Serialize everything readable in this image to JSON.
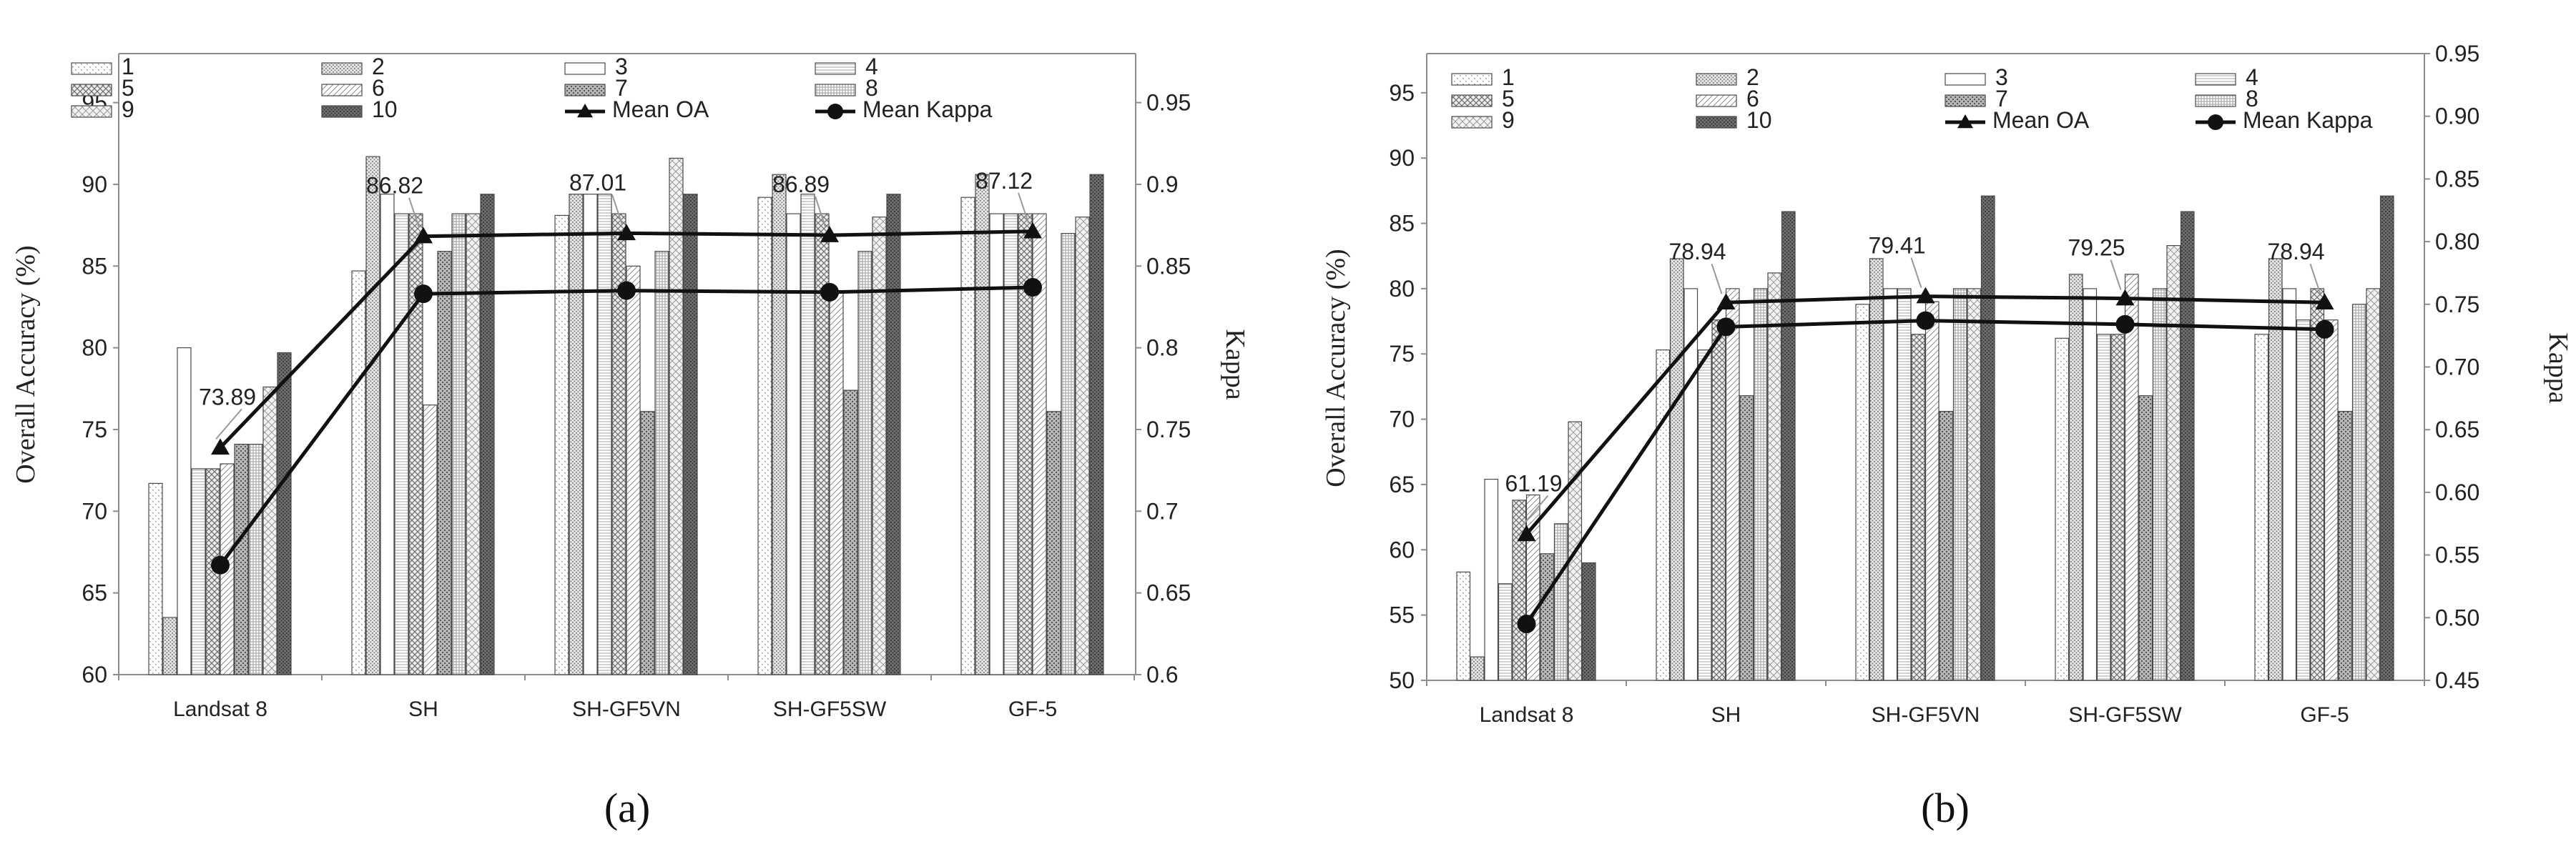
{
  "colors": {
    "axis": "#8c8c8c",
    "bar_stroke": "#4a4a4a",
    "line": "#111111",
    "text": "#222222",
    "callout": "#999999"
  },
  "chart_data": [
    {
      "type": "bar",
      "panel_label": "(a)",
      "categories": [
        "Landsat 8",
        "SH",
        "SH-GF5VN",
        "SH-GF5SW",
        "GF-5"
      ],
      "ylabel": "Overall Accuracy (%)",
      "ylabel_right": "Kappa",
      "ylim": [
        60,
        98
      ],
      "yticks": [
        "60",
        "65",
        "70",
        "75",
        "80",
        "85",
        "90",
        "95"
      ],
      "y2lim": [
        0.6,
        0.98
      ],
      "y2ticks": [
        "0.6",
        "0.65",
        "0.7",
        "0.75",
        "0.8",
        "0.85",
        "0.9",
        "0.95"
      ],
      "legend_position": "top",
      "series": [
        {
          "name": "1",
          "values": [
            71.7,
            84.7,
            88.1,
            89.2,
            89.2
          ]
        },
        {
          "name": "2",
          "values": [
            63.5,
            91.7,
            89.4,
            90.6,
            90.6
          ]
        },
        {
          "name": "3",
          "values": [
            80.0,
            89.4,
            89.4,
            88.2,
            88.2
          ]
        },
        {
          "name": "4",
          "values": [
            72.6,
            88.2,
            89.4,
            89.4,
            88.2
          ]
        },
        {
          "name": "5",
          "values": [
            72.6,
            88.2,
            88.2,
            88.2,
            88.2
          ]
        },
        {
          "name": "6",
          "values": [
            72.9,
            76.5,
            85.0,
            83.5,
            88.2
          ]
        },
        {
          "name": "7",
          "values": [
            74.1,
            85.9,
            76.1,
            77.4,
            76.1
          ]
        },
        {
          "name": "8",
          "values": [
            74.1,
            88.2,
            85.9,
            85.9,
            87.0
          ]
        },
        {
          "name": "9",
          "values": [
            77.6,
            88.2,
            91.6,
            88.0,
            88.0
          ]
        },
        {
          "name": "10",
          "values": [
            79.7,
            89.4,
            89.4,
            89.4,
            90.6
          ]
        }
      ],
      "mean_oa": {
        "name": "Mean OA",
        "values": [
          73.89,
          86.82,
          87.01,
          86.89,
          87.12
        ]
      },
      "mean_kappa": {
        "name": "Mean Kappa",
        "values": [
          0.667,
          0.833,
          0.835,
          0.834,
          0.837
        ]
      },
      "annotations": [
        "73.89",
        "86.82",
        "87.01",
        "86.89",
        "87.12"
      ]
    },
    {
      "type": "bar",
      "panel_label": "(b)",
      "categories": [
        "Landsat 8",
        "SH",
        "SH-GF5VN",
        "SH-GF5SW",
        "GF-5"
      ],
      "ylabel": "Overall Accuracy (%)",
      "ylabel_right": "Kappa",
      "ylim": [
        50,
        98
      ],
      "yticks": [
        "50",
        "55",
        "60",
        "65",
        "70",
        "75",
        "80",
        "85",
        "90",
        "95"
      ],
      "y2lim": [
        0.45,
        0.95
      ],
      "y2ticks": [
        "0.45",
        "0.50",
        "0.55",
        "0.60",
        "0.65",
        "0.70",
        "0.75",
        "0.80",
        "0.85",
        "0.90",
        "0.95"
      ],
      "legend_position": "top",
      "series": [
        {
          "name": "1",
          "values": [
            58.3,
            75.3,
            78.8,
            76.2,
            76.5
          ]
        },
        {
          "name": "2",
          "values": [
            51.8,
            82.3,
            82.3,
            81.1,
            82.3
          ]
        },
        {
          "name": "3",
          "values": [
            65.4,
            80.0,
            80.0,
            80.0,
            80.0
          ]
        },
        {
          "name": "4",
          "values": [
            57.4,
            75.3,
            80.0,
            76.5,
            77.6
          ]
        },
        {
          "name": "5",
          "values": [
            63.8,
            77.6,
            76.5,
            76.5,
            80.0
          ]
        },
        {
          "name": "6",
          "values": [
            64.2,
            80.0,
            79.0,
            81.1,
            77.6
          ]
        },
        {
          "name": "7",
          "values": [
            59.7,
            71.8,
            70.6,
            71.8,
            70.6
          ]
        },
        {
          "name": "8",
          "values": [
            62.0,
            80.0,
            80.0,
            80.0,
            78.8
          ]
        },
        {
          "name": "9",
          "values": [
            69.8,
            81.2,
            80.0,
            83.3,
            80.0
          ]
        },
        {
          "name": "10",
          "values": [
            59.0,
            85.9,
            87.1,
            85.9,
            87.1
          ]
        }
      ],
      "mean_oa": {
        "name": "Mean OA",
        "values": [
          61.19,
          78.94,
          79.41,
          79.25,
          78.94
        ]
      },
      "mean_kappa": {
        "name": "Mean Kappa",
        "values": [
          0.495,
          0.732,
          0.737,
          0.734,
          0.73
        ]
      },
      "annotations": [
        "61.19",
        "78.94",
        "79.41",
        "79.25",
        "78.94"
      ]
    }
  ]
}
